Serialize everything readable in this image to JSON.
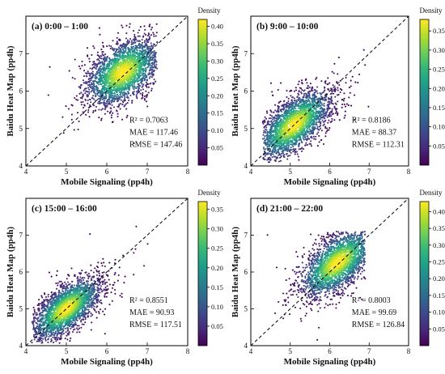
{
  "colors": {
    "viridis": [
      "#440154",
      "#482878",
      "#3e4989",
      "#31688e",
      "#26828e",
      "#1f9e89",
      "#35b779",
      "#6ece58",
      "#b5de2b",
      "#fde725"
    ],
    "diagonal": "#000000"
  },
  "chart_data": [
    {
      "type": "scatter",
      "panel_label": "(a) 0:00 – 1:00",
      "xlabel": "Mobile Signaling (pp4h)",
      "ylabel": "Baidu Heat Map (pp4h)",
      "xlim": [
        4,
        8
      ],
      "ylim": [
        4,
        8
      ],
      "x_ticks": [
        "4",
        "5",
        "6",
        "7",
        "8"
      ],
      "y_ticks": [
        "4",
        "5",
        "6",
        "7"
      ],
      "reference_line": "y = x",
      "stats": [
        "R² = 0.7063",
        "MAE = 117.46",
        "RMSE = 147.46"
      ],
      "colorbar": {
        "title": "Density",
        "ticks": [
          "0.05",
          "0.10",
          "0.15",
          "0.20",
          "0.25",
          "0.30",
          "0.35",
          "0.40"
        ],
        "range": [
          0,
          0.42
        ]
      },
      "density_cloud": {
        "n_points": 2600,
        "center": [
          6.4,
          6.5
        ],
        "spread_along_diagonal": 0.55,
        "spread_across_diagonal": 0.33,
        "x_range": [
          4.55,
          7.25
        ],
        "y_range": [
          4.2,
          7.8
        ]
      }
    },
    {
      "type": "scatter",
      "panel_label": "(b) 9:00 – 10:00",
      "xlabel": "Mobile Signaling (pp4h)",
      "ylabel": "Baidu Heat Map (pp4h)",
      "xlim": [
        4,
        8
      ],
      "ylim": [
        4,
        8
      ],
      "x_ticks": [
        "4",
        "5",
        "6",
        "7",
        "8"
      ],
      "y_ticks": [
        "4",
        "5",
        "6",
        "7"
      ],
      "reference_line": "y = x",
      "stats": [
        "R² = 0.8186",
        "MAE = 88.37",
        "RMSE = 112.31"
      ],
      "colorbar": {
        "title": "Density",
        "ticks": [
          "0.05",
          "0.10",
          "0.15",
          "0.20",
          "0.25",
          "0.30",
          "0.35"
        ],
        "range": [
          0,
          0.38
        ]
      },
      "density_cloud": {
        "n_points": 2600,
        "center": [
          5.1,
          5.1
        ],
        "spread_along_diagonal": 0.6,
        "spread_across_diagonal": 0.28,
        "x_range": [
          4.3,
          7.0
        ],
        "y_range": [
          4.1,
          7.3
        ]
      }
    },
    {
      "type": "scatter",
      "panel_label": "(c) 15:00 – 16:00",
      "xlabel": "Mobile Signaling (pp4h)",
      "ylabel": "Baidu Heat Map (pp4h)",
      "xlim": [
        4,
        8
      ],
      "ylim": [
        4,
        8
      ],
      "x_ticks": [
        "4",
        "5",
        "6",
        "7",
        "8"
      ],
      "y_ticks": [
        "4",
        "5",
        "6",
        "7"
      ],
      "reference_line": "y = x",
      "stats": [
        "R² = 0.8551",
        "MAE = 90.93",
        "RMSE = 117.51"
      ],
      "colorbar": {
        "title": "Density",
        "ticks": [
          "0.05",
          "0.10",
          "0.15",
          "0.20",
          "0.25",
          "0.30",
          "0.35"
        ],
        "range": [
          0,
          0.37
        ]
      },
      "density_cloud": {
        "n_points": 2600,
        "center": [
          5.0,
          5.0
        ],
        "spread_along_diagonal": 0.55,
        "spread_across_diagonal": 0.25,
        "x_range": [
          4.15,
          7.1
        ],
        "y_range": [
          4.05,
          7.3
        ]
      }
    },
    {
      "type": "scatter",
      "panel_label": "(d) 21:00 – 22:00",
      "xlabel": "Mobile Signaling (pp4h)",
      "ylabel": "Baidu Heat Map (pp4h)",
      "xlim": [
        4,
        8
      ],
      "ylim": [
        4,
        8
      ],
      "x_ticks": [
        "4",
        "5",
        "6",
        "7",
        "8"
      ],
      "y_ticks": [
        "4",
        "5",
        "6",
        "7"
      ],
      "reference_line": "y = x",
      "stats": [
        "R² = 0.8003",
        "MAE = 99.69",
        "RMSE = 126.84"
      ],
      "colorbar": {
        "title": "Density",
        "ticks": [
          "0.05",
          "0.10",
          "0.15",
          "0.20",
          "0.25",
          "0.30",
          "0.35",
          "0.40"
        ],
        "range": [
          0,
          0.43
        ]
      },
      "density_cloud": {
        "n_points": 2600,
        "center": [
          6.2,
          6.25
        ],
        "spread_along_diagonal": 0.6,
        "spread_across_diagonal": 0.3,
        "x_range": [
          4.3,
          6.9
        ],
        "y_range": [
          4.1,
          7.1
        ]
      }
    }
  ]
}
